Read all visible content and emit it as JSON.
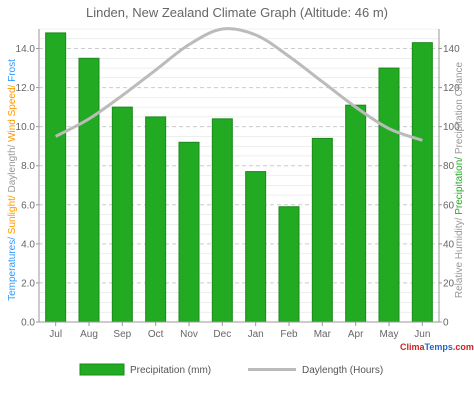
{
  "chart_data": {
    "type": "bar",
    "title": "Linden, New Zealand Climate Graph (Altitude: 46 m)",
    "categories": [
      "Jul",
      "Aug",
      "Sep",
      "Oct",
      "Nov",
      "Dec",
      "Jan",
      "Feb",
      "Mar",
      "Apr",
      "May",
      "Jun"
    ],
    "series": [
      {
        "name": "Precipitation (mm)",
        "type": "bar",
        "axis": "right",
        "values": [
          148,
          135,
          110,
          105,
          92,
          104,
          77,
          59,
          94,
          111,
          130,
          143
        ]
      },
      {
        "name": "Daylength (Hours)",
        "type": "line",
        "axis": "left",
        "values": [
          9.5,
          10.4,
          11.6,
          12.9,
          14.2,
          15.0,
          14.7,
          13.6,
          12.3,
          11.0,
          9.9,
          9.3
        ]
      }
    ],
    "y_left": {
      "label_parts": [
        {
          "text": "Temperatures/",
          "color": "#3399ff"
        },
        {
          "text": " Sunlight/",
          "color": "#ff9900"
        },
        {
          "text": " Daylength/",
          "color": "#999999"
        },
        {
          "text": " Wind Speed/",
          "color": "#ff9900"
        },
        {
          "text": " Frost",
          "color": "#3399ff"
        }
      ],
      "ylim": [
        0,
        15
      ],
      "ticks": [
        "0.0",
        "2.0",
        "4.0",
        "6.0",
        "8.0",
        "10.0",
        "12.0",
        "14.0"
      ]
    },
    "y_right": {
      "label_parts": [
        {
          "text": "Relative Humidity/",
          "color": "#999999"
        },
        {
          "text": " Precipitation/",
          "color": "#22aa22"
        },
        {
          "text": " Precipitation Chance",
          "color": "#999999"
        }
      ],
      "ylim": [
        0,
        150
      ],
      "ticks": [
        "0",
        "20",
        "40",
        "60",
        "80",
        "100",
        "120",
        "140"
      ]
    },
    "grid": true,
    "legend_position": "bottom",
    "colors": {
      "bar": "#22aa22",
      "bar_stroke": "#1a8a1a",
      "line": "#bbbbbb",
      "grid": "#cccccc",
      "axis": "#999999"
    }
  },
  "legend": [
    {
      "label": "Precipitation (mm)",
      "kind": "bar"
    },
    {
      "label": "Daylength (Hours)",
      "kind": "line"
    }
  ],
  "brand": {
    "part1": "Clima",
    "part2": "Temps",
    "part3": ".com"
  }
}
